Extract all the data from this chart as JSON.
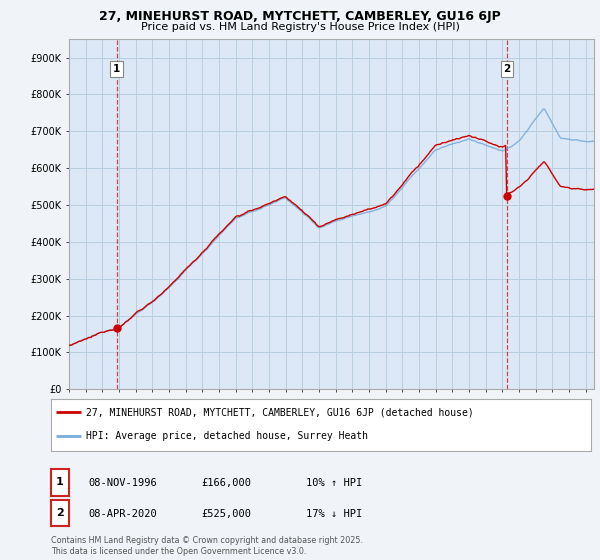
{
  "title1": "27, MINEHURST ROAD, MYTCHETT, CAMBERLEY, GU16 6JP",
  "title2": "Price paid vs. HM Land Registry's House Price Index (HPI)",
  "xlim_start": 1994.0,
  "xlim_end": 2025.5,
  "ylim_min": 0,
  "ylim_max": 950000,
  "yticks": [
    0,
    100000,
    200000,
    300000,
    400000,
    500000,
    600000,
    700000,
    800000,
    900000
  ],
  "ytick_labels": [
    "£0",
    "£100K",
    "£200K",
    "£300K",
    "£400K",
    "£500K",
    "£600K",
    "£700K",
    "£800K",
    "£900K"
  ],
  "hpi_color": "#7aaddc",
  "price_color": "#cc0000",
  "sale1_date": 1996.86,
  "sale1_price": 166000,
  "sale2_date": 2020.27,
  "sale2_price": 525000,
  "legend1": "27, MINEHURST ROAD, MYTCHETT, CAMBERLEY, GU16 6JP (detached house)",
  "legend2": "HPI: Average price, detached house, Surrey Heath",
  "background_color": "#f0f4f8",
  "plot_bg_color": "#dce8f5",
  "grid_color": "#b8cfe0",
  "copyright": "Contains HM Land Registry data © Crown copyright and database right 2025.\nThis data is licensed under the Open Government Licence v3.0."
}
